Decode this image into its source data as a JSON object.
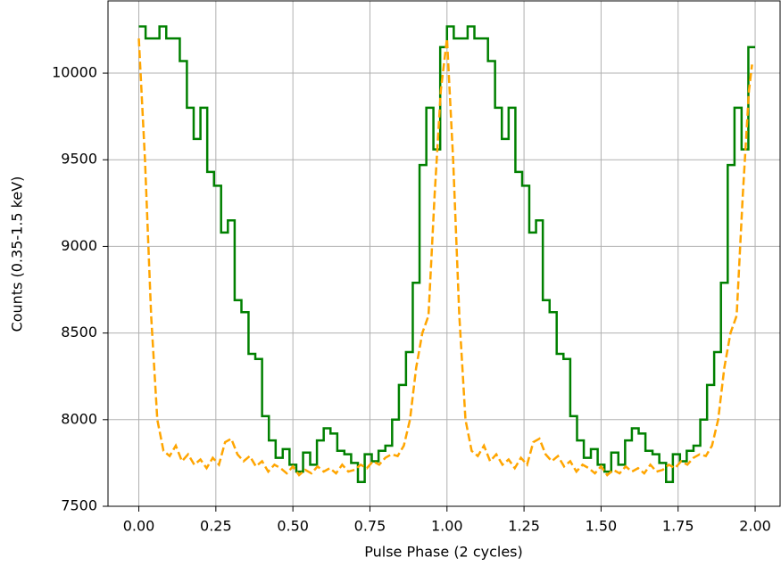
{
  "chart_data": {
    "type": "line",
    "xlabel": "Pulse Phase (2 cycles)",
    "ylabel": "Counts (0.35-1.5 keV)",
    "xlim": [
      -0.1,
      2.081
    ],
    "ylim": [
      7500,
      10417
    ],
    "grid": true,
    "xticks": [
      {
        "value": 0,
        "label": "0.00"
      },
      {
        "value": 0.25,
        "label": "0.25"
      },
      {
        "value": 0.5,
        "label": "0.50"
      },
      {
        "value": 0.75,
        "label": "0.75"
      },
      {
        "value": 1,
        "label": "1.00"
      },
      {
        "value": 1.25,
        "label": "1.25"
      },
      {
        "value": 1.5,
        "label": "1.50"
      },
      {
        "value": 1.75,
        "label": "1.75"
      },
      {
        "value": 2,
        "label": "2.00"
      }
    ],
    "yticks": [
      7500,
      8000,
      8500,
      9000,
      9500,
      10000
    ],
    "series": [
      {
        "color": "#008000",
        "drawstyle": "steps-post",
        "linestyle": "solid",
        "x": [
          0,
          0.022,
          0.044,
          0.067,
          0.089,
          0.111,
          0.133,
          0.156,
          0.178,
          0.2,
          0.222,
          0.244,
          0.267,
          0.289,
          0.311,
          0.333,
          0.356,
          0.378,
          0.4,
          0.422,
          0.444,
          0.467,
          0.489,
          0.511,
          0.533,
          0.556,
          0.578,
          0.6,
          0.622,
          0.644,
          0.667,
          0.689,
          0.711,
          0.733,
          0.756,
          0.778,
          0.8,
          0.822,
          0.844,
          0.867,
          0.889,
          0.911,
          0.933,
          0.956,
          0.978,
          1,
          1.022,
          1.044,
          1.067,
          1.089,
          1.111,
          1.133,
          1.156,
          1.178,
          1.2,
          1.222,
          1.244,
          1.267,
          1.289,
          1.311,
          1.333,
          1.356,
          1.378,
          1.4,
          1.422,
          1.444,
          1.467,
          1.489,
          1.511,
          1.533,
          1.556,
          1.578,
          1.6,
          1.622,
          1.644,
          1.667,
          1.689,
          1.711,
          1.733,
          1.756,
          1.778,
          1.8,
          1.822,
          1.844,
          1.867,
          1.889,
          1.911,
          1.933,
          1.956,
          1.978
        ],
        "values": [
          10270,
          10200,
          10200,
          10270,
          10200,
          10200,
          10070,
          9800,
          9620,
          9800,
          9430,
          9350,
          9080,
          9150,
          8690,
          8620,
          8380,
          8350,
          8020,
          7880,
          7780,
          7830,
          7740,
          7700,
          7810,
          7740,
          7880,
          7950,
          7920,
          7820,
          7800,
          7750,
          7640,
          7800,
          7760,
          7820,
          7850,
          8000,
          8200,
          8390,
          8790,
          9470,
          9800,
          9560,
          10150,
          10270,
          10200,
          10200,
          10270,
          10200,
          10200,
          10070,
          9800,
          9620,
          9800,
          9430,
          9350,
          9080,
          9150,
          8690,
          8620,
          8380,
          8350,
          8020,
          7880,
          7780,
          7830,
          7740,
          7700,
          7810,
          7740,
          7880,
          7950,
          7920,
          7820,
          7800,
          7750,
          7640,
          7800,
          7760,
          7820,
          7850,
          8000,
          8200,
          8390,
          8790,
          9470,
          9800,
          9560,
          10150
        ]
      },
      {
        "color": "#ffa500",
        "drawstyle": "default",
        "linestyle": "dashed",
        "x": [
          0,
          0.02,
          0.04,
          0.06,
          0.08,
          0.1,
          0.12,
          0.14,
          0.16,
          0.18,
          0.2,
          0.22,
          0.24,
          0.26,
          0.28,
          0.3,
          0.32,
          0.34,
          0.36,
          0.38,
          0.4,
          0.42,
          0.44,
          0.46,
          0.48,
          0.5,
          0.52,
          0.54,
          0.56,
          0.58,
          0.6,
          0.62,
          0.64,
          0.66,
          0.68,
          0.7,
          0.72,
          0.74,
          0.76,
          0.78,
          0.8,
          0.82,
          0.84,
          0.86,
          0.88,
          0.9,
          0.92,
          0.94,
          0.96,
          0.98,
          1,
          1.02,
          1.04,
          1.06,
          1.08,
          1.1,
          1.12,
          1.14,
          1.16,
          1.18,
          1.2,
          1.22,
          1.24,
          1.26,
          1.28,
          1.3,
          1.32,
          1.34,
          1.36,
          1.38,
          1.4,
          1.42,
          1.44,
          1.46,
          1.48,
          1.5,
          1.52,
          1.54,
          1.56,
          1.58,
          1.6,
          1.62,
          1.64,
          1.66,
          1.68,
          1.7,
          1.72,
          1.74,
          1.76,
          1.78,
          1.8,
          1.82,
          1.84,
          1.86,
          1.88,
          1.9,
          1.92,
          1.94,
          1.96,
          1.98,
          1.99
        ],
        "values": [
          10200,
          9500,
          8600,
          8000,
          7820,
          7790,
          7850,
          7760,
          7800,
          7740,
          7770,
          7720,
          7780,
          7740,
          7870,
          7890,
          7800,
          7760,
          7790,
          7730,
          7760,
          7700,
          7740,
          7720,
          7690,
          7730,
          7680,
          7710,
          7690,
          7730,
          7700,
          7720,
          7690,
          7740,
          7700,
          7710,
          7740,
          7720,
          7760,
          7740,
          7780,
          7800,
          7790,
          7850,
          8000,
          8300,
          8500,
          8600,
          9300,
          9900,
          10200,
          9500,
          8600,
          8000,
          7820,
          7790,
          7850,
          7760,
          7800,
          7740,
          7770,
          7720,
          7780,
          7740,
          7870,
          7890,
          7800,
          7760,
          7790,
          7730,
          7760,
          7700,
          7740,
          7720,
          7690,
          7730,
          7680,
          7710,
          7690,
          7730,
          7700,
          7720,
          7690,
          7740,
          7700,
          7710,
          7740,
          7720,
          7760,
          7740,
          7780,
          7800,
          7790,
          7850,
          8000,
          8300,
          8500,
          8600,
          9300,
          9900,
          10050
        ]
      }
    ]
  }
}
